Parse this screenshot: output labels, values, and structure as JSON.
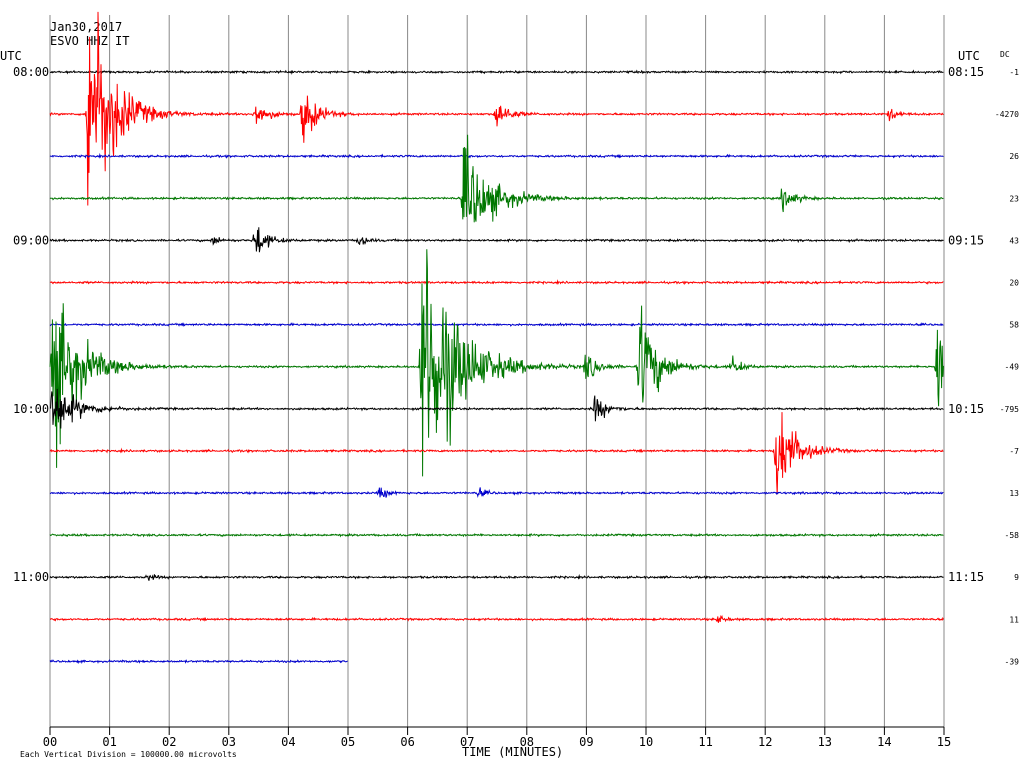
{
  "header": {
    "date": "Jan30,2017",
    "station": "ESVO HHZ IT",
    "utc_left": "UTC",
    "utc_right": "UTC",
    "dc_label": "DC"
  },
  "footer": {
    "scale_note": "Each Vertical Division = 100000.00 microvolts",
    "x_axis_title": "TIME (MINUTES)"
  },
  "colors": {
    "black": "#000000",
    "red": "#ff0000",
    "blue": "#0000cc",
    "green": "#007700",
    "grid": "#888888"
  },
  "chart_data": {
    "type": "line",
    "title": "Jan30,2017 ESVO HHZ IT",
    "xlabel": "TIME (MINUTES)",
    "xlim": [
      0,
      15
    ],
    "x_ticks": [
      "00",
      "01",
      "02",
      "03",
      "04",
      "05",
      "06",
      "07",
      "08",
      "09",
      "10",
      "11",
      "12",
      "13",
      "14",
      "15"
    ],
    "trace_interval_minutes": 15,
    "trace_color_cycle": [
      "black",
      "red",
      "blue",
      "green"
    ],
    "traces": [
      {
        "index": 0,
        "color": "black",
        "left_time": "08:00",
        "right_time": "08:15",
        "dc": "-1",
        "end_minute": 15
      },
      {
        "index": 1,
        "color": "red",
        "left_time": "",
        "right_time": "",
        "dc": "-4270",
        "end_minute": 15
      },
      {
        "index": 2,
        "color": "blue",
        "left_time": "",
        "right_time": "",
        "dc": "26",
        "end_minute": 15
      },
      {
        "index": 3,
        "color": "green",
        "left_time": "",
        "right_time": "",
        "dc": "23",
        "end_minute": 15
      },
      {
        "index": 4,
        "color": "black",
        "left_time": "09:00",
        "right_time": "09:15",
        "dc": "43",
        "end_minute": 15
      },
      {
        "index": 5,
        "color": "red",
        "left_time": "",
        "right_time": "",
        "dc": "20",
        "end_minute": 15
      },
      {
        "index": 6,
        "color": "blue",
        "left_time": "",
        "right_time": "",
        "dc": "58",
        "end_minute": 15
      },
      {
        "index": 7,
        "color": "green",
        "left_time": "",
        "right_time": "",
        "dc": "-49",
        "end_minute": 15
      },
      {
        "index": 8,
        "color": "black",
        "left_time": "10:00",
        "right_time": "10:15",
        "dc": "-795",
        "end_minute": 15
      },
      {
        "index": 9,
        "color": "red",
        "left_time": "",
        "right_time": "",
        "dc": "-7",
        "end_minute": 15
      },
      {
        "index": 10,
        "color": "blue",
        "left_time": "",
        "right_time": "",
        "dc": "13",
        "end_minute": 15
      },
      {
        "index": 11,
        "color": "green",
        "left_time": "",
        "right_time": "",
        "dc": "-58",
        "end_minute": 15
      },
      {
        "index": 12,
        "color": "black",
        "left_time": "11:00",
        "right_time": "11:15",
        "dc": "9",
        "end_minute": 15
      },
      {
        "index": 13,
        "color": "red",
        "left_time": "",
        "right_time": "",
        "dc": "11",
        "end_minute": 15
      },
      {
        "index": 14,
        "color": "blue",
        "left_time": "",
        "right_time": "",
        "dc": "-39",
        "end_minute": 5
      }
    ],
    "events": [
      {
        "trace": 1,
        "minute": 0.65,
        "amplitude": 6,
        "decay_minutes": 1.0
      },
      {
        "trace": 1,
        "minute": 3.45,
        "amplitude": 0.6,
        "decay_minutes": 0.5
      },
      {
        "trace": 1,
        "minute": 4.25,
        "amplitude": 1.2,
        "decay_minutes": 0.6
      },
      {
        "trace": 1,
        "minute": 7.5,
        "amplitude": 0.7,
        "decay_minutes": 0.5
      },
      {
        "trace": 1,
        "minute": 14.1,
        "amplitude": 0.3,
        "decay_minutes": 0.3
      },
      {
        "trace": 3,
        "minute": 6.95,
        "amplitude": 2.2,
        "decay_minutes": 1.2
      },
      {
        "trace": 3,
        "minute": 12.3,
        "amplitude": 0.5,
        "decay_minutes": 0.5
      },
      {
        "trace": 4,
        "minute": 2.75,
        "amplitude": 0.2,
        "decay_minutes": 0.3
      },
      {
        "trace": 4,
        "minute": 3.45,
        "amplitude": 0.8,
        "decay_minutes": 0.5
      },
      {
        "trace": 4,
        "minute": 5.2,
        "amplitude": 0.3,
        "decay_minutes": 0.3
      },
      {
        "trace": 7,
        "minute": 0.05,
        "amplitude": 3.5,
        "decay_minutes": 1.2
      },
      {
        "trace": 7,
        "minute": 6.25,
        "amplitude": 6,
        "decay_minutes": 1.5
      },
      {
        "trace": 7,
        "minute": 9.0,
        "amplitude": 0.6,
        "decay_minutes": 0.5
      },
      {
        "trace": 7,
        "minute": 9.9,
        "amplitude": 2.5,
        "decay_minutes": 0.8
      },
      {
        "trace": 7,
        "minute": 11.45,
        "amplitude": 0.4,
        "decay_minutes": 0.4
      },
      {
        "trace": 7,
        "minute": 14.9,
        "amplitude": 3.0,
        "decay_minutes": 0.3
      },
      {
        "trace": 8,
        "minute": 0.05,
        "amplitude": 1.2,
        "decay_minutes": 1.0
      },
      {
        "trace": 8,
        "minute": 9.15,
        "amplitude": 0.6,
        "decay_minutes": 0.5
      },
      {
        "trace": 9,
        "minute": 12.2,
        "amplitude": 2.2,
        "decay_minutes": 0.8
      },
      {
        "trace": 10,
        "minute": 5.55,
        "amplitude": 0.3,
        "decay_minutes": 0.3
      },
      {
        "trace": 10,
        "minute": 7.2,
        "amplitude": 0.2,
        "decay_minutes": 0.3
      },
      {
        "trace": 12,
        "minute": 1.65,
        "amplitude": 0.15,
        "decay_minutes": 0.3
      },
      {
        "trace": 13,
        "minute": 11.2,
        "amplitude": 0.2,
        "decay_minutes": 0.3
      }
    ]
  }
}
